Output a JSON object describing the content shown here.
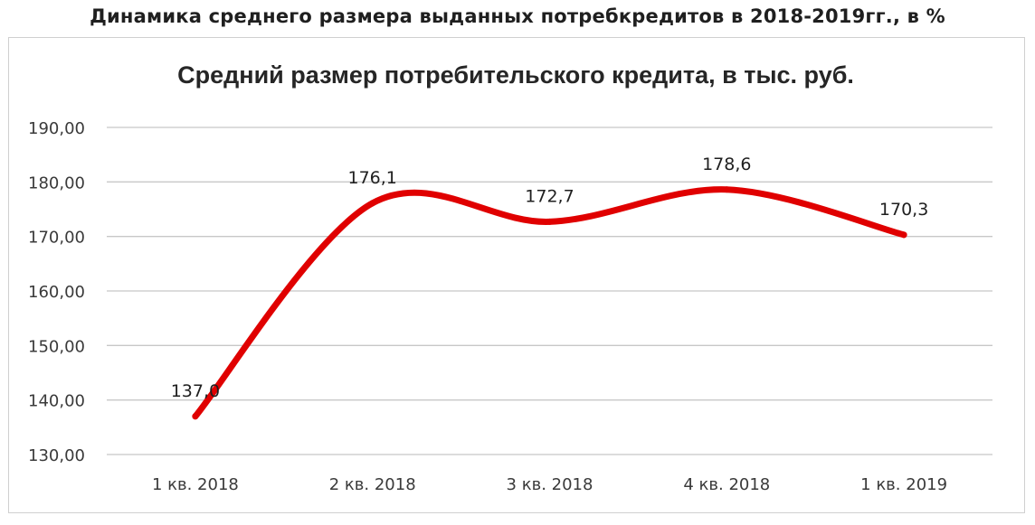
{
  "page_title": "Динамика среднего размера выданных потребкредитов в 2018-2019гг., в %",
  "chart_data": {
    "type": "line",
    "title": "Средний размер потребительского кредита, в тыс. руб.",
    "categories": [
      "1 кв. 2018",
      "2 кв. 2018",
      "3 кв. 2018",
      "4 кв. 2018",
      "1 кв. 2019"
    ],
    "values": [
      137.0,
      176.1,
      172.7,
      178.6,
      170.3
    ],
    "data_labels": [
      "137,0",
      "176,1",
      "172,7",
      "178,6",
      "170,3"
    ],
    "yticks": [
      130,
      140,
      150,
      160,
      170,
      180,
      190
    ],
    "ytick_labels": [
      "130,00",
      "140,00",
      "150,00",
      "160,00",
      "170,00",
      "180,00",
      "190,00"
    ],
    "ylim": [
      130,
      190
    ],
    "smooth": true,
    "grid": true,
    "legend": "none",
    "line_color": "#e00000",
    "grid_color": "#c8c8c8"
  }
}
